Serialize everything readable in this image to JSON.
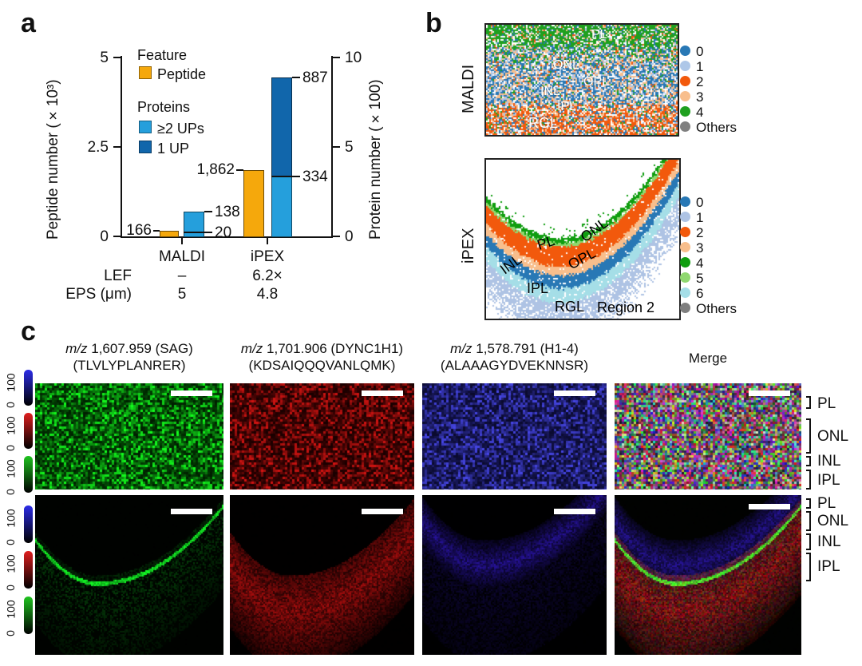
{
  "figure": {
    "panel_a_label": "a",
    "panel_b_label": "b",
    "panel_c_label": "c"
  },
  "chart_data": {
    "type": "bar",
    "title": "",
    "categories": [
      "MALDI",
      "iPEX"
    ],
    "series": [
      {
        "name": "Peptide",
        "axis": "left",
        "values": [
          166,
          1862
        ]
      },
      {
        "name": "Proteins total",
        "axis": "right",
        "values": [
          138,
          887
        ]
      },
      {
        "name": "Proteins segment divider (1 UP / ≥2 UPs boundary)",
        "axis": "right",
        "values": [
          20,
          334
        ]
      }
    ],
    "ylabel_left": "Peptide number (×10³)",
    "ylabel_right": "Protein number (×100)",
    "ylim_left": [
      0,
      5
    ],
    "ylim_right": [
      0,
      10
    ],
    "annotation_rows": [
      {
        "name": "LEF",
        "values": [
          "–",
          "6.2×"
        ]
      },
      {
        "name": "EPS (μm)",
        "values": [
          "5",
          "4.8"
        ]
      }
    ],
    "legend_position": "upper left",
    "grid": false
  },
  "panel_a": {
    "legend": {
      "feature_title": "Feature",
      "peptide_label": "Peptide",
      "proteins_title": "Proteins",
      "ups2_label": "≥2 UPs",
      "up1_label": "1 UP"
    },
    "y_left": {
      "label": "Peptide number (×10³)",
      "ticks": [
        "5",
        "2.5",
        "0"
      ]
    },
    "y_right": {
      "label": "Protein number (×100)",
      "ticks": [
        "10",
        "5",
        "0"
      ]
    },
    "bar_labels": {
      "maldi_peptide": "166",
      "maldi_protein_total": "138",
      "maldi_protein_split": "20",
      "ipex_peptide": "1,862",
      "ipex_protein_total": "887",
      "ipex_protein_split": "334"
    },
    "x_labels": [
      "MALDI",
      "iPEX"
    ],
    "rows": [
      {
        "name": "LEF",
        "values": [
          "–",
          "6.2×"
        ]
      },
      {
        "name": "EPS (μm)",
        "values": [
          "5",
          "4.8"
        ]
      }
    ],
    "colors": {
      "peptide": "#F5A80C",
      "ups2": "#259FDC",
      "up1": "#1166AB"
    }
  },
  "panel_b": {
    "top": {
      "row_label": "MALDI",
      "regions": [
        "PL",
        "ONL",
        "OPL",
        "INL",
        "IPL",
        "RGL"
      ],
      "legend": [
        {
          "label": "0",
          "color": "#2878B5"
        },
        {
          "label": "1",
          "color": "#AEC7E8"
        },
        {
          "label": "2",
          "color": "#F2590C"
        },
        {
          "label": "3",
          "color": "#F8BE8C"
        },
        {
          "label": "4",
          "color": "#1FA01F"
        },
        {
          "label": "Others",
          "color": "#7F7F7F"
        }
      ]
    },
    "bottom": {
      "row_label": "iPEX",
      "regions": [
        "PL",
        "ONL",
        "OPL",
        "INL",
        "IPL",
        "RGL"
      ],
      "region_tag": "Region 2",
      "legend": [
        {
          "label": "0",
          "color": "#2878B5"
        },
        {
          "label": "1",
          "color": "#AEC3E4"
        },
        {
          "label": "2",
          "color": "#F2590C"
        },
        {
          "label": "3",
          "color": "#F8BE8C"
        },
        {
          "label": "4",
          "color": "#0F9D0F"
        },
        {
          "label": "5",
          "color": "#90D870"
        },
        {
          "label": "6",
          "color": "#A5DEE7"
        },
        {
          "label": "Others",
          "color": "#7F7F7F"
        }
      ]
    }
  },
  "panel_c": {
    "columns": [
      {
        "mz": "m/z",
        "line1": " 1,607.959 (SAG)",
        "line2": "(TLVLYPLANRER)"
      },
      {
        "mz": "m/z",
        "line1": " 1,701.906 (DYNC1H1)",
        "line2": "(KDSAIQQQVANLQMK)"
      },
      {
        "mz": "m/z",
        "line1": " 1,578.791 (H1-4)",
        "line2": "(ALAAAGYDVEKNNSR)"
      },
      {
        "title": "Merge"
      }
    ],
    "colorbar": {
      "max": "100",
      "min": "0",
      "colors": {
        "blue": "#2C2CE8",
        "red": "#E01F1F",
        "green": "#1FC41F"
      }
    },
    "layer_labels_row1": [
      "PL",
      "ONL",
      "INL",
      "IPL"
    ],
    "layer_labels_row2": [
      "PL",
      "ONL",
      "INL",
      "IPL"
    ]
  }
}
